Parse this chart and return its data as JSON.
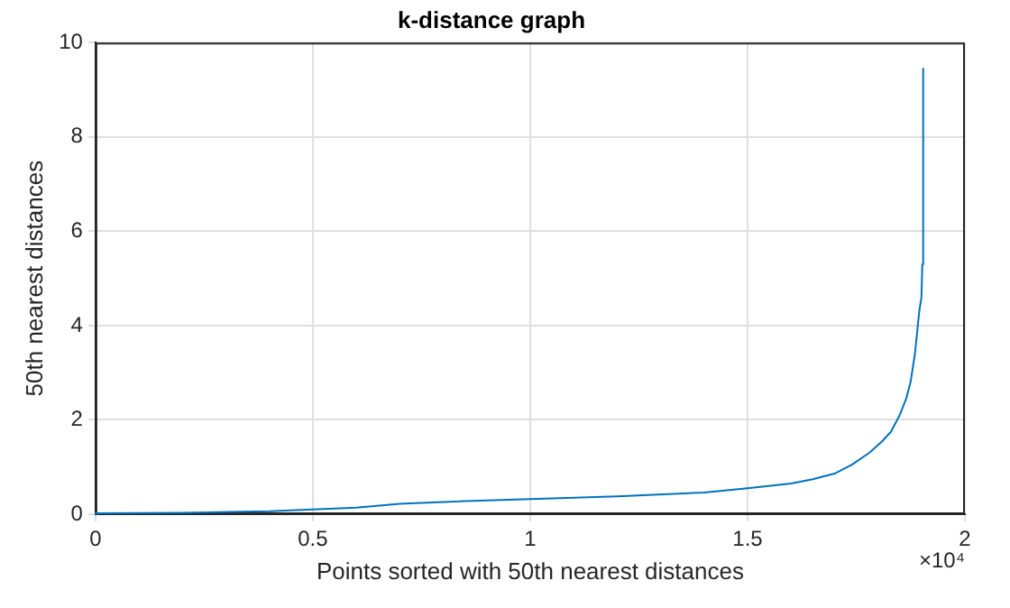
{
  "chart_data": {
    "type": "line",
    "title": "k-distance graph",
    "xlabel": "Points sorted with 50th nearest distances",
    "ylabel": "50th nearest distances",
    "x": [
      0,
      0.2,
      0.4,
      0.5,
      0.6,
      0.7,
      0.8,
      1.0,
      1.2,
      1.4,
      1.5,
      1.6,
      1.65,
      1.7,
      1.74,
      1.78,
      1.81,
      1.83,
      1.85,
      1.865,
      1.875,
      1.885,
      1.895,
      1.9,
      1.902,
      1.904
    ],
    "series": [
      {
        "color": "#0072bd",
        "values": [
          0.02,
          0.03,
          0.06,
          0.1,
          0.14,
          0.22,
          0.26,
          0.32,
          0.38,
          0.46,
          0.55,
          0.65,
          0.74,
          0.86,
          1.05,
          1.3,
          1.55,
          1.75,
          2.1,
          2.45,
          2.8,
          3.4,
          4.3,
          4.6,
          5.3,
          9.45
        ]
      }
    ],
    "xlim": [
      0,
      2
    ],
    "xticks": [
      0,
      0.5,
      1,
      1.5,
      2
    ],
    "ylim": [
      0,
      10
    ],
    "yticks": [
      0,
      2,
      4,
      6,
      8,
      10
    ],
    "grid": true,
    "legend": false,
    "marker": "none",
    "line_style": "solid",
    "annotations": [
      "×10⁴"
    ]
  }
}
